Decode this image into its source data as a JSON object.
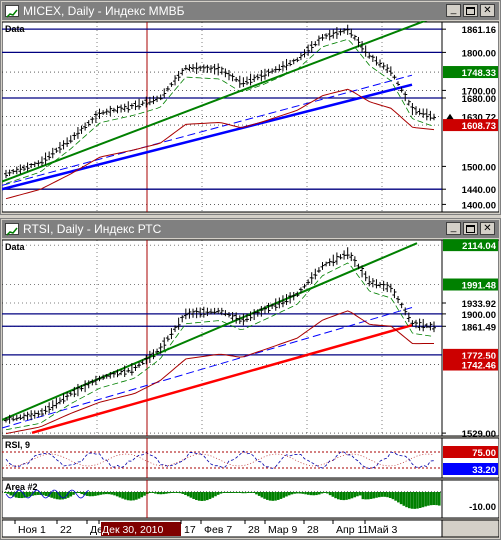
{
  "colors": {
    "titlebar": "#808080",
    "titletext": "#ffffff",
    "plot_bg": "#ffffff",
    "frame": "#d4d0c8",
    "bar": "#000000",
    "green_line": "#008000",
    "blue_line": "#0000ff",
    "red_line": "#ff0000",
    "maroon_line": "#aa0000",
    "hline": "#000080",
    "price_box_green": "#008000",
    "price_box_red": "#cc0000",
    "price_box_blue": "#0000ff"
  },
  "window_controls": [
    "minimize-icon",
    "maximize-icon",
    "close-icon"
  ],
  "windows": [
    {
      "title": "MICEX, Daily - Индекс ММВБ",
      "panes": [
        {
          "label": "Data",
          "ticks": [
            "1861.16",
            "1800.00",
            "1748.33",
            "1700.00",
            "1680.00",
            "1630.72",
            "1608.73",
            "1500.00",
            "1440.00",
            "1400.00"
          ],
          "boxed": {
            "1861.16": "none",
            "1800.00": "none",
            "1748.33": "green",
            "1680.00": "none",
            "1630.72": "marker",
            "1608.73": "red",
            "1440.00": "none"
          },
          "range": [
            1380,
            1880
          ],
          "hlines": [
            1861.16,
            1800,
            1680,
            1440
          ],
          "last": 1630.72
        }
      ]
    },
    {
      "title": "RTSI, Daily - Индекс РТС",
      "panes": [
        {
          "label": "Data",
          "ticks": [
            "2114.04",
            "1991.48",
            "1933.92",
            "1900.00",
            "1861.49",
            "1772.50",
            "1742.46",
            "1529.00"
          ],
          "boxed": {
            "2114.04": "green",
            "1991.48": "green",
            "1933.92": "none",
            "1900.00": "none",
            "1861.49": "none",
            "1772.50": "red",
            "1742.46": "red"
          },
          "range": [
            1520,
            2130
          ],
          "hlines": [
            1900,
            1861.49,
            1772.5
          ],
          "last": 1861.49
        },
        {
          "label": "RSI, 9",
          "ticks": [
            "75.00",
            "33.20"
          ],
          "boxed": {
            "75.00": "red",
            "33.20": "blue"
          }
        },
        {
          "label": "Area #2",
          "ticks": [
            "-10.00"
          ],
          "boxed": {
            "-10.00": "none"
          }
        }
      ]
    }
  ],
  "xaxis": {
    "labels": [
      "Ноя 1",
      "22",
      "Дек",
      "Дек 30, 2010",
      "17",
      "Фев 7",
      "28",
      "Мар 9",
      "28",
      "Апр 11",
      "Май 3"
    ],
    "highlight": "Дек 30, 2010"
  }
}
